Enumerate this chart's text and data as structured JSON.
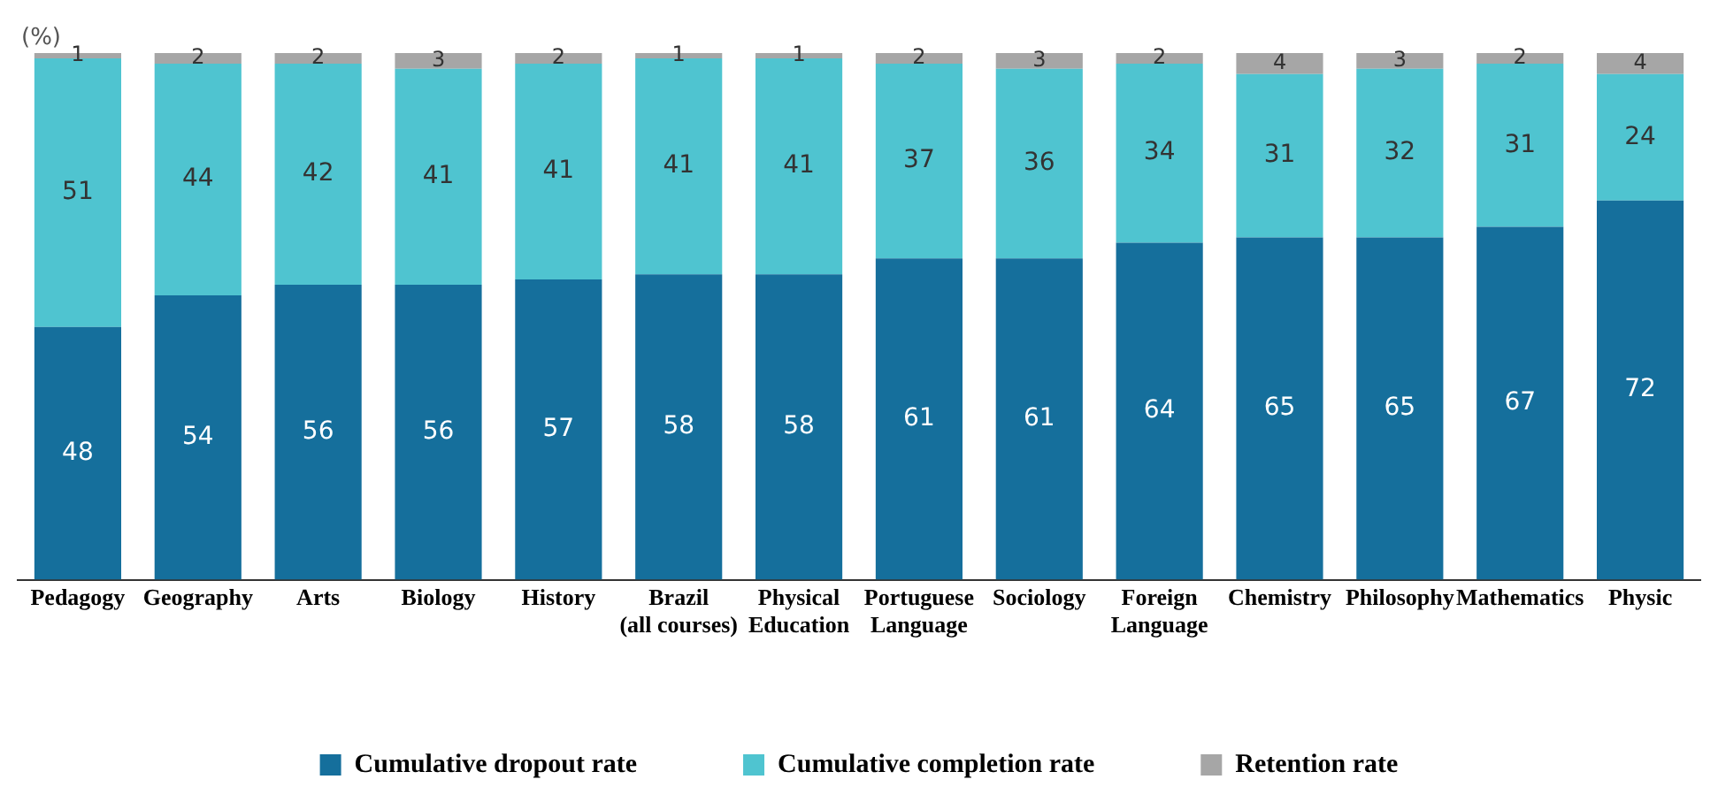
{
  "chart_data": {
    "type": "bar",
    "stacked": true,
    "ylabel": "(%)",
    "categories": [
      "Pedagogy",
      "Geography",
      "Arts",
      "Biology",
      "History",
      "Brazil (all courses)",
      "Physical Education",
      "Portuguese Language",
      "Sociology",
      "Foreign Language",
      "Chemistry",
      "Philosophy",
      "Mathematics",
      "Physic"
    ],
    "series": [
      {
        "name": "Cumulative dropout rate",
        "color": "#156f9c",
        "values": [
          48,
          54,
          56,
          56,
          57,
          58,
          58,
          61,
          61,
          64,
          65,
          65,
          67,
          72
        ]
      },
      {
        "name": "Cumulative completion rate",
        "color": "#4fc4d0",
        "values": [
          51,
          44,
          42,
          41,
          41,
          41,
          41,
          37,
          36,
          34,
          31,
          32,
          31,
          24
        ]
      },
      {
        "name": "Retention rate",
        "color": "#a6a6a6",
        "values": [
          1,
          2,
          2,
          3,
          2,
          1,
          1,
          2,
          3,
          2,
          4,
          3,
          2,
          4
        ]
      }
    ],
    "data_labels": true,
    "legend": "bottom",
    "grid": false
  }
}
